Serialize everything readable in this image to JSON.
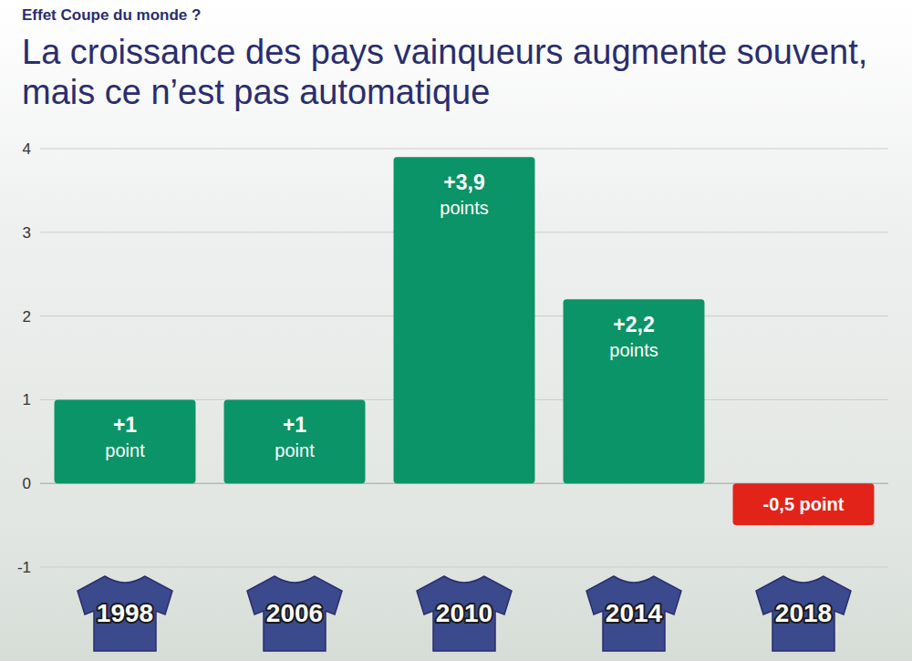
{
  "chart_data": {
    "type": "bar",
    "subtitle": "Effet Coupe du monde ?",
    "title": "La croissance des pays vainqueurs augmente souvent, mais ce n’est pas automatique",
    "categories": [
      "1998",
      "2006",
      "2010",
      "2014",
      "2018"
    ],
    "values": [
      1,
      1,
      3.9,
      2.2,
      -0.5
    ],
    "value_labels": [
      "+1 point",
      "+1 point",
      "+3,9 points",
      "+2,2 points",
      "-0,5 point"
    ],
    "colors": [
      "#0b9467",
      "#0b9467",
      "#0b9467",
      "#0b9467",
      "#e2231a"
    ],
    "ylim": [
      -1,
      4
    ],
    "yticks": [
      -1,
      0,
      1,
      2,
      3,
      4
    ],
    "grid": true,
    "data_labels": true
  }
}
